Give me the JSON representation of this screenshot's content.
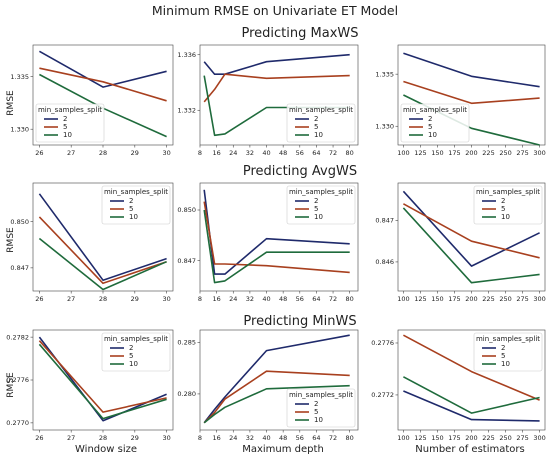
{
  "suptitle": "Minimum RMSE on Univariate ET Model",
  "rows": [
    {
      "title": "Predicting MaxWS",
      "ylabel": "RMSE"
    },
    {
      "title": "Predicting AvgWS",
      "ylabel": "RMSE"
    },
    {
      "title": "Predicting MinWS",
      "ylabel": "RMSE"
    }
  ],
  "columns": [
    {
      "xlabel": "Window size"
    },
    {
      "xlabel": "Maximum depth"
    },
    {
      "xlabel": "Number of estimators"
    }
  ],
  "legend_title": "min_samples_split",
  "series_colors": {
    "2": "#1f2a6b",
    "5": "#a8401f",
    "10": "#1f6b3c"
  },
  "chart_data": [
    {
      "id": "maxws-window",
      "type": "line",
      "row": 0,
      "col": 0,
      "x": [
        26,
        28,
        30
      ],
      "xticks": [
        26,
        27,
        28,
        29,
        30
      ],
      "xlim": [
        25.8,
        30.2
      ],
      "yticks": [
        1.33,
        1.335
      ],
      "ylim": [
        1.3285,
        1.338
      ],
      "ytick_decimals": 3,
      "legend": "lower-left",
      "series": [
        {
          "name": "2",
          "values": [
            1.3374,
            1.334,
            1.3355
          ]
        },
        {
          "name": "5",
          "values": [
            1.3358,
            1.3345,
            1.3327
          ]
        },
        {
          "name": "10",
          "values": [
            1.3352,
            1.332,
            1.3293
          ]
        }
      ]
    },
    {
      "id": "maxws-depth",
      "type": "line",
      "row": 0,
      "col": 1,
      "x": [
        10,
        15,
        20,
        40,
        80
      ],
      "xticks": [
        8,
        16,
        24,
        32,
        40,
        48,
        56,
        64,
        72,
        80
      ],
      "xlim": [
        8,
        84
      ],
      "yticks": [
        1.332,
        1.336
      ],
      "ylim": [
        1.3295,
        1.3367
      ],
      "ytick_decimals": 3,
      "legend": "lower-right",
      "series": [
        {
          "name": "2",
          "values": [
            1.3355,
            1.3346,
            1.3346,
            1.3355,
            1.336
          ]
        },
        {
          "name": "5",
          "values": [
            1.3326,
            1.3335,
            1.3346,
            1.3343,
            1.3345
          ]
        },
        {
          "name": "10",
          "values": [
            1.3345,
            1.3302,
            1.3303,
            1.3322,
            1.3322
          ]
        }
      ]
    },
    {
      "id": "maxws-estimators",
      "type": "line",
      "row": 0,
      "col": 2,
      "x": [
        100,
        200,
        300
      ],
      "xticks": [
        100,
        125,
        150,
        175,
        200,
        225,
        250,
        275,
        300
      ],
      "xlim": [
        92,
        308
      ],
      "yticks": [
        1.33,
        1.335
      ],
      "ylim": [
        1.3282,
        1.3378
      ],
      "ytick_decimals": 3,
      "legend": "lower-left",
      "series": [
        {
          "name": "2",
          "values": [
            1.337,
            1.3348,
            1.3338
          ]
        },
        {
          "name": "5",
          "values": [
            1.3343,
            1.3322,
            1.3327
          ]
        },
        {
          "name": "10",
          "values": [
            1.333,
            1.3298,
            1.3282
          ]
        }
      ]
    },
    {
      "id": "avgws-window",
      "type": "line",
      "row": 1,
      "col": 0,
      "x": [
        26,
        28,
        30
      ],
      "xticks": [
        26,
        27,
        28,
        29,
        30
      ],
      "xlim": [
        25.8,
        30.2
      ],
      "yticks": [
        0.847,
        0.85
      ],
      "ylim": [
        0.8455,
        0.8525
      ],
      "ytick_decimals": 3,
      "legend": "upper-right",
      "series": [
        {
          "name": "2",
          "values": [
            0.8518,
            0.8462,
            0.8476
          ]
        },
        {
          "name": "5",
          "values": [
            0.8503,
            0.846,
            0.8474
          ]
        },
        {
          "name": "10",
          "values": [
            0.8489,
            0.8456,
            0.8474
          ]
        }
      ]
    },
    {
      "id": "avgws-depth",
      "type": "line",
      "row": 1,
      "col": 1,
      "x": [
        10,
        15,
        20,
        40,
        80
      ],
      "xticks": [
        8,
        16,
        24,
        32,
        40,
        48,
        56,
        64,
        72,
        80
      ],
      "xlim": [
        8,
        84
      ],
      "yticks": [
        0.847,
        0.85
      ],
      "ylim": [
        0.8452,
        0.8516
      ],
      "ytick_decimals": 3,
      "legend": "upper-right",
      "series": [
        {
          "name": "2",
          "values": [
            0.8512,
            0.8462,
            0.8462,
            0.8483,
            0.848
          ]
        },
        {
          "name": "5",
          "values": [
            0.8505,
            0.8468,
            0.8468,
            0.8467,
            0.8463
          ]
        },
        {
          "name": "10",
          "values": [
            0.85,
            0.8457,
            0.8458,
            0.8475,
            0.8475
          ]
        }
      ]
    },
    {
      "id": "avgws-estimators",
      "type": "line",
      "row": 1,
      "col": 2,
      "x": [
        100,
        200,
        300
      ],
      "xticks": [
        100,
        125,
        150,
        175,
        200,
        225,
        250,
        275,
        300
      ],
      "xlim": [
        92,
        308
      ],
      "yticks": [
        0.846,
        0.847
      ],
      "ylim": [
        0.8453,
        0.8479
      ],
      "ytick_decimals": 3,
      "legend": "upper-right",
      "series": [
        {
          "name": "2",
          "values": [
            0.8477,
            0.8459,
            0.8467
          ]
        },
        {
          "name": "5",
          "values": [
            0.8474,
            0.8465,
            0.8461
          ]
        },
        {
          "name": "10",
          "values": [
            0.8473,
            0.8455,
            0.8457
          ]
        }
      ]
    },
    {
      "id": "minws-window",
      "type": "line",
      "row": 2,
      "col": 0,
      "x": [
        26,
        28,
        30
      ],
      "xticks": [
        26,
        27,
        28,
        29,
        30
      ],
      "xlim": [
        25.8,
        30.2
      ],
      "yticks": [
        0.277,
        0.2776,
        0.2782
      ],
      "ylim": [
        0.2769,
        0.2783
      ],
      "ytick_decimals": 4,
      "legend": "upper-right",
      "series": [
        {
          "name": "2",
          "values": [
            0.2782,
            0.27703,
            0.2774
          ]
        },
        {
          "name": "5",
          "values": [
            0.27815,
            0.27715,
            0.27735
          ]
        },
        {
          "name": "10",
          "values": [
            0.2781,
            0.27706,
            0.27733
          ]
        }
      ]
    },
    {
      "id": "minws-depth",
      "type": "line",
      "row": 2,
      "col": 1,
      "x": [
        10,
        15,
        20,
        40,
        80
      ],
      "xticks": [
        8,
        16,
        24,
        32,
        40,
        48,
        56,
        64,
        72,
        80
      ],
      "xlim": [
        8,
        84
      ],
      "yticks": [
        0.28,
        0.285
      ],
      "ylim": [
        0.2765,
        0.2862
      ],
      "ytick_decimals": 3,
      "legend": "lower-right",
      "series": [
        {
          "name": "2",
          "values": [
            0.2772,
            0.2785,
            0.2797,
            0.2842,
            0.2857
          ]
        },
        {
          "name": "5",
          "values": [
            0.2772,
            0.2782,
            0.2795,
            0.2822,
            0.2818
          ]
        },
        {
          "name": "10",
          "values": [
            0.2772,
            0.278,
            0.2787,
            0.2805,
            0.2808
          ]
        }
      ]
    },
    {
      "id": "minws-estimators",
      "type": "line",
      "row": 2,
      "col": 2,
      "x": [
        100,
        200,
        300
      ],
      "xticks": [
        100,
        125,
        150,
        175,
        200,
        225,
        250,
        275,
        300
      ],
      "xlim": [
        92,
        308
      ],
      "yticks": [
        0.2772,
        0.2776
      ],
      "ylim": [
        0.27693,
        0.2777
      ],
      "ytick_decimals": 4,
      "legend": "upper-right",
      "series": [
        {
          "name": "2",
          "values": [
            0.27723,
            0.27701,
            0.277
          ]
        },
        {
          "name": "5",
          "values": [
            0.27766,
            0.27738,
            0.27716
          ]
        },
        {
          "name": "10",
          "values": [
            0.27734,
            0.27706,
            0.27718
          ]
        }
      ]
    }
  ]
}
